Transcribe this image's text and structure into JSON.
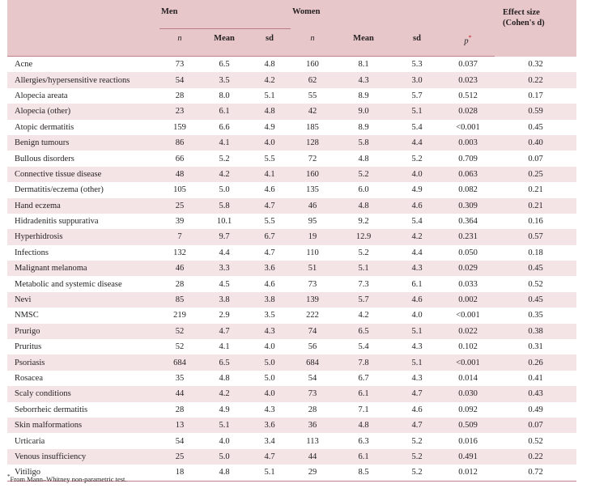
{
  "header": {
    "group_men": "Men",
    "group_women": "Women",
    "col_n": "n",
    "col_mean": "Mean",
    "col_sd": "sd",
    "col_p": "p",
    "col_p_marker": "*",
    "col_effect_line1": "Effect size",
    "col_effect_line2": "(Cohen's d)"
  },
  "rows": [
    {
      "name": "Acne",
      "men_n": "73",
      "men_mean": "6.5",
      "men_sd": "4.8",
      "women_n": "160",
      "women_mean": "8.1",
      "women_sd": "5.3",
      "p": "0.037",
      "es": "0.32"
    },
    {
      "name": "Allergies/hypersensitive reactions",
      "men_n": "54",
      "men_mean": "3.5",
      "men_sd": "4.2",
      "women_n": "62",
      "women_mean": "4.3",
      "women_sd": "3.0",
      "p": "0.023",
      "es": "0.22"
    },
    {
      "name": "Alopecia areata",
      "men_n": "28",
      "men_mean": "8.0",
      "men_sd": "5.1",
      "women_n": "55",
      "women_mean": "8.9",
      "women_sd": "5.7",
      "p": "0.512",
      "es": "0.17"
    },
    {
      "name": "Alopecia (other)",
      "men_n": "23",
      "men_mean": "6.1",
      "men_sd": "4.8",
      "women_n": "42",
      "women_mean": "9.0",
      "women_sd": "5.1",
      "p": "0.028",
      "es": "0.59"
    },
    {
      "name": "Atopic dermatitis",
      "men_n": "159",
      "men_mean": "6.6",
      "men_sd": "4.9",
      "women_n": "185",
      "women_mean": "8.9",
      "women_sd": "5.4",
      "p": "<0.001",
      "es": "0.45"
    },
    {
      "name": "Benign tumours",
      "men_n": "86",
      "men_mean": "4.1",
      "men_sd": "4.0",
      "women_n": "128",
      "women_mean": "5.8",
      "women_sd": "4.4",
      "p": "0.003",
      "es": "0.40"
    },
    {
      "name": "Bullous disorders",
      "men_n": "66",
      "men_mean": "5.2",
      "men_sd": "5.5",
      "women_n": "72",
      "women_mean": "4.8",
      "women_sd": "5.2",
      "p": "0.709",
      "es": "0.07"
    },
    {
      "name": "Connective tissue disease",
      "men_n": "48",
      "men_mean": "4.2",
      "men_sd": "4.1",
      "women_n": "160",
      "women_mean": "5.2",
      "women_sd": "4.0",
      "p": "0.063",
      "es": "0.25"
    },
    {
      "name": "Dermatitis/eczema (other)",
      "men_n": "105",
      "men_mean": "5.0",
      "men_sd": "4.6",
      "women_n": "135",
      "women_mean": "6.0",
      "women_sd": "4.9",
      "p": "0.082",
      "es": "0.21"
    },
    {
      "name": "Hand eczema",
      "men_n": "25",
      "men_mean": "5.8",
      "men_sd": "4.7",
      "women_n": "46",
      "women_mean": "4.8",
      "women_sd": "4.6",
      "p": "0.309",
      "es": "0.21"
    },
    {
      "name": "Hidradenitis suppurativa",
      "men_n": "39",
      "men_mean": "10.1",
      "men_sd": "5.5",
      "women_n": "95",
      "women_mean": "9.2",
      "women_sd": "5.4",
      "p": "0.364",
      "es": "0.16"
    },
    {
      "name": "Hyperhidrosis",
      "men_n": "7",
      "men_mean": "9.7",
      "men_sd": "6.7",
      "women_n": "19",
      "women_mean": "12.9",
      "women_sd": "4.2",
      "p": "0.231",
      "es": "0.57"
    },
    {
      "name": "Infections",
      "men_n": "132",
      "men_mean": "4.4",
      "men_sd": "4.7",
      "women_n": "110",
      "women_mean": "5.2",
      "women_sd": "4.4",
      "p": "0.050",
      "es": "0.18"
    },
    {
      "name": "Malignant melanoma",
      "men_n": "46",
      "men_mean": "3.3",
      "men_sd": "3.6",
      "women_n": "51",
      "women_mean": "5.1",
      "women_sd": "4.3",
      "p": "0.029",
      "es": "0.45"
    },
    {
      "name": "Metabolic and systemic disease",
      "men_n": "28",
      "men_mean": "4.5",
      "men_sd": "4.6",
      "women_n": "73",
      "women_mean": "7.3",
      "women_sd": "6.1",
      "p": "0.033",
      "es": "0.52"
    },
    {
      "name": "Nevi",
      "men_n": "85",
      "men_mean": "3.8",
      "men_sd": "3.8",
      "women_n": "139",
      "women_mean": "5.7",
      "women_sd": "4.6",
      "p": "0.002",
      "es": "0.45"
    },
    {
      "name": "NMSC",
      "men_n": "219",
      "men_mean": "2.9",
      "men_sd": "3.5",
      "women_n": "222",
      "women_mean": "4.2",
      "women_sd": "4.0",
      "p": "<0.001",
      "es": "0.35"
    },
    {
      "name": "Prurigo",
      "men_n": "52",
      "men_mean": "4.7",
      "men_sd": "4.3",
      "women_n": "74",
      "women_mean": "6.5",
      "women_sd": "5.1",
      "p": "0.022",
      "es": "0.38"
    },
    {
      "name": "Pruritus",
      "men_n": "52",
      "men_mean": "4.1",
      "men_sd": "4.0",
      "women_n": "56",
      "women_mean": "5.4",
      "women_sd": "4.3",
      "p": "0.102",
      "es": "0.31"
    },
    {
      "name": "Psoriasis",
      "men_n": "684",
      "men_mean": "6.5",
      "men_sd": "5.0",
      "women_n": "684",
      "women_mean": "7.8",
      "women_sd": "5.1",
      "p": "<0.001",
      "es": "0.26"
    },
    {
      "name": "Rosacea",
      "men_n": "35",
      "men_mean": "4.8",
      "men_sd": "5.0",
      "women_n": "54",
      "women_mean": "6.7",
      "women_sd": "4.3",
      "p": "0.014",
      "es": "0.41"
    },
    {
      "name": "Scaly conditions",
      "men_n": "44",
      "men_mean": "4.2",
      "men_sd": "4.0",
      "women_n": "73",
      "women_mean": "6.1",
      "women_sd": "4.7",
      "p": "0.030",
      "es": "0.43"
    },
    {
      "name": "Seborrheic dermatitis",
      "men_n": "28",
      "men_mean": "4.9",
      "men_sd": "4.3",
      "women_n": "28",
      "women_mean": "7.1",
      "women_sd": "4.6",
      "p": "0.092",
      "es": "0.49"
    },
    {
      "name": "Skin malformations",
      "men_n": "13",
      "men_mean": "5.1",
      "men_sd": "3.6",
      "women_n": "36",
      "women_mean": "4.8",
      "women_sd": "4.7",
      "p": "0.509",
      "es": "0.07"
    },
    {
      "name": "Urticaria",
      "men_n": "54",
      "men_mean": "4.0",
      "men_sd": "3.4",
      "women_n": "113",
      "women_mean": "6.3",
      "women_sd": "5.2",
      "p": "0.016",
      "es": "0.52"
    },
    {
      "name": "Venous insufficiency",
      "men_n": "25",
      "men_mean": "5.0",
      "men_sd": "4.7",
      "women_n": "44",
      "women_mean": "6.1",
      "women_sd": "5.2",
      "p": "0.491",
      "es": "0.22"
    },
    {
      "name": "Vitiligo",
      "men_n": "18",
      "men_mean": "4.8",
      "men_sd": "5.1",
      "women_n": "29",
      "women_mean": "8.5",
      "women_sd": "5.2",
      "p": "0.012",
      "es": "0.72"
    }
  ],
  "footnote": {
    "marker": "*",
    "text": "From Mann–Whitney non-parametric test."
  },
  "colors": {
    "header_bg": "#e8c7cb",
    "stripe_bg": "#f4e4e6",
    "rule": "#c0808a",
    "marker": "#c0282e"
  }
}
